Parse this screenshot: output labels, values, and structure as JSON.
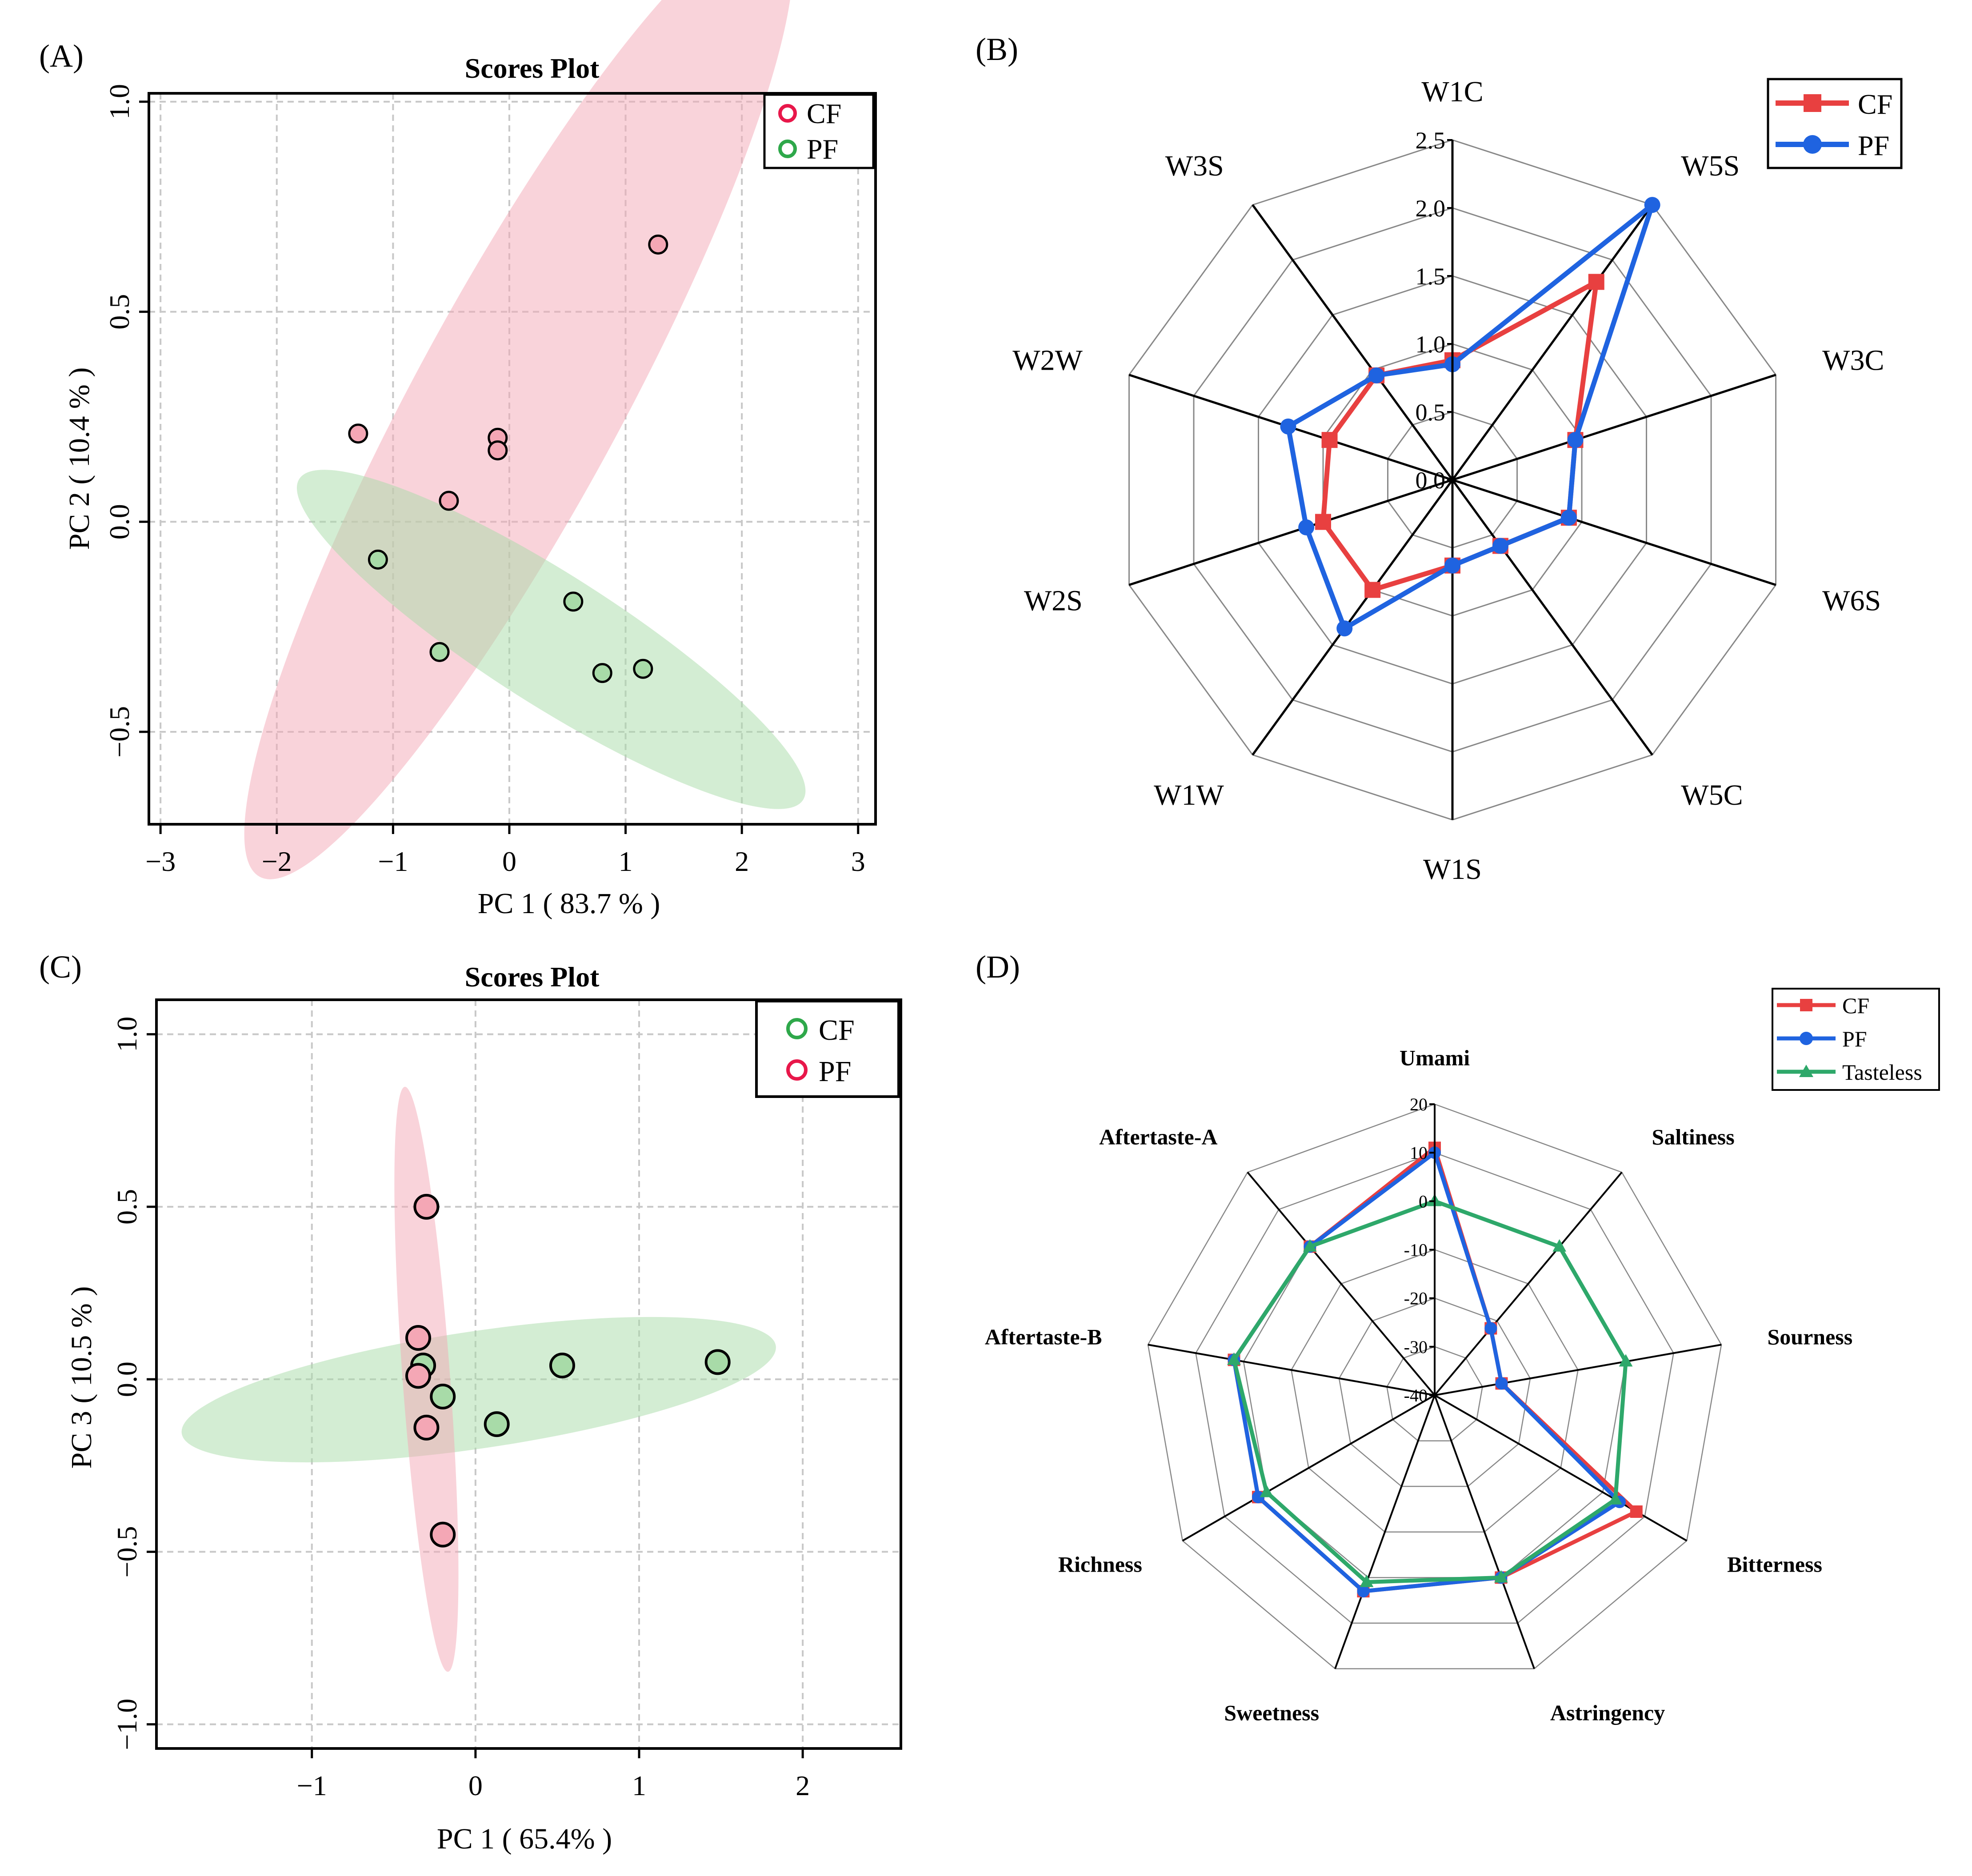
{
  "panel_labels": {
    "a": "(A)",
    "b": "(B)",
    "c": "(C)",
    "d": "(D)"
  },
  "chart_data": [
    {
      "id": "A",
      "type": "scatter",
      "title": "Scores Plot",
      "xlabel": "PC 1 ( 83.7 % )",
      "ylabel": "PC 2 ( 10.4 % )",
      "xlim": [
        -3.1,
        3.15
      ],
      "ylim": [
        -0.72,
        1.02
      ],
      "xticks": [
        -3,
        -2,
        -1,
        0,
        1,
        2,
        3
      ],
      "yticks": [
        -0.5,
        0.0,
        0.5,
        1.0
      ],
      "xtick_labels": [
        "−3",
        "−2",
        "−1",
        "0",
        "1",
        "2",
        "3"
      ],
      "ytick_labels": [
        "−0.5",
        "0.0",
        "0.5",
        "1.0"
      ],
      "grid": true,
      "legend_position": "top-right",
      "series": [
        {
          "name": "CF",
          "color": "#e8174a",
          "fill": "#f4a7b5",
          "points": [
            [
              1.28,
              0.66
            ],
            [
              -1.3,
              0.21
            ],
            [
              -0.1,
              0.2
            ],
            [
              -0.1,
              0.17
            ],
            [
              -0.52,
              0.05
            ]
          ],
          "ellipse": {
            "center": [
              0.08,
              0.29
            ],
            "rx": 2.5,
            "ry": 0.245,
            "angle_deg": 27
          }
        },
        {
          "name": "PF",
          "color": "#2ea84a",
          "fill": "#a8dba8",
          "points": [
            [
              -1.13,
              -0.09
            ],
            [
              0.55,
              -0.19
            ],
            [
              -0.6,
              -0.31
            ],
            [
              0.8,
              -0.36
            ],
            [
              1.15,
              -0.35
            ]
          ],
          "ellipse": {
            "center": [
              0.36,
              -0.28
            ],
            "rx": 2.2,
            "ry": 0.155,
            "angle_deg": -10
          }
        }
      ]
    },
    {
      "id": "B",
      "type": "radar",
      "axes": [
        "W1C",
        "W5S",
        "W3C",
        "W6S",
        "W5C",
        "W1S",
        "W1W",
        "W2S",
        "W2W",
        "W3S"
      ],
      "rlim": [
        0,
        2.5
      ],
      "rticks": [
        0.0,
        0.5,
        1.0,
        1.5,
        2.0,
        2.5
      ],
      "rtick_labels": [
        "0.0",
        "0.5",
        "1.0",
        "1.5",
        "2.0",
        "2.5"
      ],
      "legend_position": "top-right",
      "series": [
        {
          "name": "CF",
          "color": "#e84040",
          "marker": "square",
          "values": [
            0.88,
            1.8,
            0.95,
            0.9,
            0.6,
            0.63,
            1.0,
            1.0,
            0.95,
            0.95
          ]
        },
        {
          "name": "PF",
          "color": "#1f63e0",
          "marker": "circle",
          "values": [
            0.85,
            2.5,
            0.95,
            0.9,
            0.6,
            0.63,
            1.35,
            1.13,
            1.27,
            0.95
          ]
        }
      ]
    },
    {
      "id": "C",
      "type": "scatter",
      "title": "Scores Plot",
      "xlabel": "PC 1 ( 65.4% )",
      "ylabel": "PC 3 ( 10.5 % )",
      "xlim": [
        -1.95,
        2.6
      ],
      "ylim": [
        -1.07,
        1.1
      ],
      "xticks": [
        -1,
        0,
        1,
        2
      ],
      "yticks": [
        -1.0,
        -0.5,
        0.0,
        0.5,
        1.0
      ],
      "xtick_labels": [
        "−1",
        "0",
        "1",
        "2"
      ],
      "ytick_labels": [
        "−1.0",
        "−0.5",
        "0.0",
        "0.5",
        "1.0"
      ],
      "grid": true,
      "legend_position": "top-right",
      "series": [
        {
          "name": "CF",
          "color": "#2ea84a",
          "fill": "#a8dba8",
          "points": [
            [
              -0.32,
              0.04
            ],
            [
              -0.2,
              -0.05
            ],
            [
              0.53,
              0.04
            ],
            [
              1.48,
              0.05
            ],
            [
              0.13,
              -0.13
            ]
          ],
          "ellipse": {
            "center": [
              0.02,
              -0.03
            ],
            "rx": 1.82,
            "ry": 0.17,
            "angle_deg": 4
          }
        },
        {
          "name": "PF",
          "color": "#e8174a",
          "fill": "#f4a7b5",
          "points": [
            [
              -0.3,
              0.5
            ],
            [
              -0.35,
              0.12
            ],
            [
              -0.35,
              0.01
            ],
            [
              -0.3,
              -0.14
            ],
            [
              -0.2,
              -0.45
            ]
          ],
          "ellipse": {
            "center": [
              -0.3,
              0.0
            ],
            "rx": 0.145,
            "ry": 0.85,
            "angle_deg": 2
          }
        }
      ]
    },
    {
      "id": "D",
      "type": "radar",
      "axes": [
        "Umami",
        "Saltiness",
        "Sourness",
        "Bitterness",
        "Astringency",
        "Sweetness",
        "Richness",
        "Aftertaste-B",
        "Aftertaste-A"
      ],
      "rlim": [
        -40,
        20
      ],
      "rticks": [
        -40,
        -30,
        -20,
        -10,
        0,
        10,
        20
      ],
      "rtick_labels": [
        "-40",
        "-30",
        "-20",
        "-10",
        "0",
        "10",
        "20"
      ],
      "legend_position": "top-right",
      "series": [
        {
          "name": "CF",
          "color": "#e84040",
          "marker": "square",
          "values": [
            11,
            -22,
            -26,
            8,
            0,
            3,
            2,
            2,
            0
          ]
        },
        {
          "name": "PF",
          "color": "#1f63e0",
          "marker": "circle",
          "values": [
            10,
            -22,
            -26,
            4,
            0,
            3,
            2,
            2,
            0
          ]
        },
        {
          "name": "Tasteless",
          "color": "#2ea86a",
          "marker": "triangle",
          "values": [
            0,
            0,
            0,
            3,
            0,
            1,
            0,
            2,
            0
          ]
        }
      ]
    }
  ]
}
